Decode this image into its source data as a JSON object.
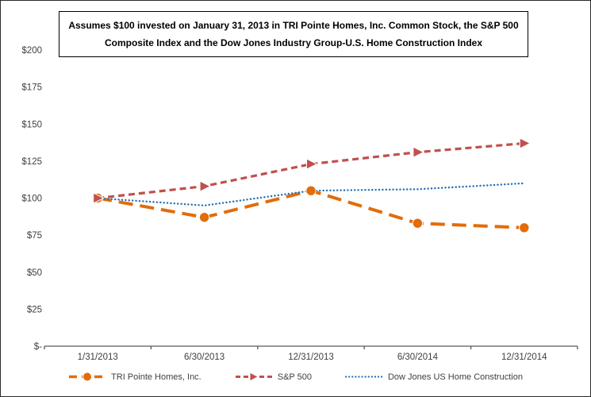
{
  "chart_data": {
    "type": "line",
    "title": "Assumes $100 invested on January 31, 2013  in TRI Pointe Homes, Inc. Common Stock, the S&P 500  Composite Index and the Dow Jones Industry Group-U.S. Home Construction Index",
    "categories": [
      "1/31/2013",
      "6/30/2013",
      "12/31/2013",
      "6/30/2014",
      "12/31/2014"
    ],
    "series": [
      {
        "name": "TRI Pointe Homes, Inc.",
        "values": [
          100,
          87,
          105,
          83,
          80
        ],
        "color": "#E36C0A",
        "line_style": "long-dash",
        "marker": "circle"
      },
      {
        "name": "S&P 500",
        "values": [
          100,
          108,
          123,
          131,
          137
        ],
        "color": "#C0504D",
        "line_style": "dash",
        "marker": "triangle"
      },
      {
        "name": "Dow Jones US Home Construction",
        "values": [
          100,
          95,
          105,
          106,
          110
        ],
        "color": "#1F6FB5",
        "line_style": "dot",
        "marker": "none"
      }
    ],
    "ylim": [
      0,
      200
    ],
    "ytick_step": 25,
    "ytick_labels": [
      "$-",
      "$25",
      "$50",
      "$75",
      "$100",
      "$125",
      "$150",
      "$175",
      "$200"
    ],
    "grid": false,
    "legend_position": "bottom",
    "axis_color": "#595959",
    "text_color": "#404040"
  }
}
